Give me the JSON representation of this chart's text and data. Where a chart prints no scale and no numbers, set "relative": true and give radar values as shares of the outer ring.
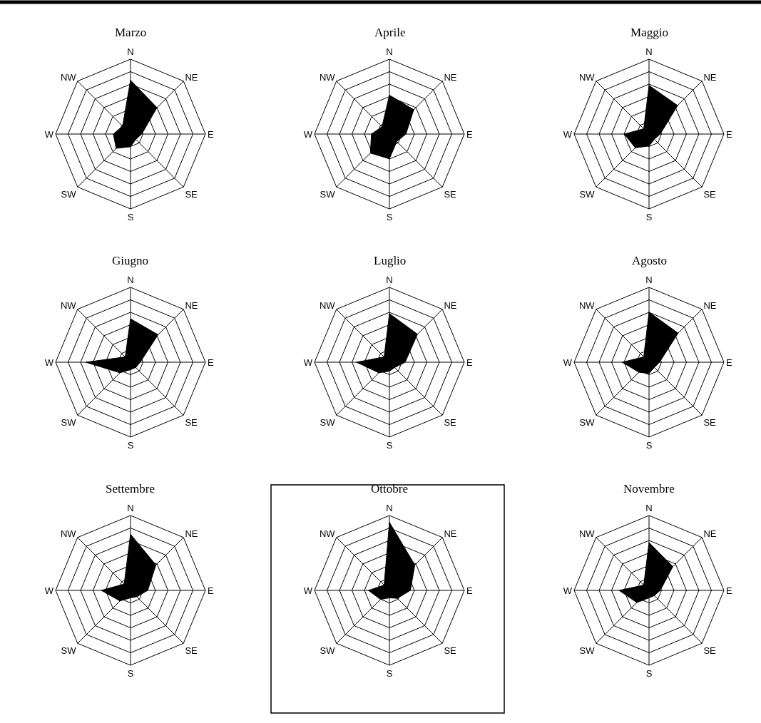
{
  "chart_data": [
    {
      "type": "radar",
      "title": "Marzo",
      "relative": true,
      "categories": [
        "N",
        "NE",
        "E",
        "SE",
        "S",
        "SW",
        "W",
        "NW"
      ],
      "series": [
        {
          "color": "#000000",
          "values": [
            0.72,
            0.5,
            0.15,
            0.1,
            0.17,
            0.27,
            0.23,
            0.15
          ]
        }
      ]
    },
    {
      "type": "radar",
      "title": "Aprile",
      "relative": true,
      "categories": [
        "N",
        "NE",
        "E",
        "SE",
        "S",
        "SW",
        "W",
        "NW"
      ],
      "series": [
        {
          "color": "#000000",
          "values": [
            0.52,
            0.46,
            0.22,
            0.14,
            0.33,
            0.36,
            0.24,
            0.14
          ]
        }
      ]
    },
    {
      "type": "radar",
      "title": "Maggio",
      "relative": true,
      "categories": [
        "N",
        "NE",
        "E",
        "SE",
        "S",
        "SW",
        "W",
        "NW"
      ],
      "series": [
        {
          "color": "#000000",
          "values": [
            0.65,
            0.54,
            0.15,
            0.1,
            0.16,
            0.26,
            0.33,
            0.1
          ]
        }
      ]
    },
    {
      "type": "radar",
      "title": "Giugno",
      "relative": true,
      "categories": [
        "N",
        "NE",
        "E",
        "SE",
        "S",
        "SW",
        "W",
        "NW"
      ],
      "series": [
        {
          "color": "#000000",
          "values": [
            0.58,
            0.52,
            0.13,
            0.1,
            0.1,
            0.2,
            0.6,
            0.1
          ]
        }
      ]
    },
    {
      "type": "radar",
      "title": "Luglio",
      "relative": true,
      "categories": [
        "N",
        "NE",
        "E",
        "SE",
        "S",
        "SW",
        "W",
        "NW"
      ],
      "series": [
        {
          "color": "#000000",
          "values": [
            0.65,
            0.53,
            0.21,
            0.1,
            0.12,
            0.2,
            0.44,
            0.1
          ]
        }
      ]
    },
    {
      "type": "radar",
      "title": "Agosto",
      "relative": true,
      "categories": [
        "N",
        "NE",
        "E",
        "SE",
        "S",
        "SW",
        "W",
        "NW"
      ],
      "series": [
        {
          "color": "#000000",
          "values": [
            0.67,
            0.55,
            0.14,
            0.1,
            0.15,
            0.19,
            0.36,
            0.1
          ]
        }
      ]
    },
    {
      "type": "radar",
      "title": "Settembre",
      "relative": true,
      "categories": [
        "N",
        "NE",
        "E",
        "SE",
        "S",
        "SW",
        "W",
        "NW"
      ],
      "series": [
        {
          "color": "#000000",
          "values": [
            0.75,
            0.48,
            0.23,
            0.12,
            0.1,
            0.2,
            0.39,
            0.12
          ]
        }
      ]
    },
    {
      "type": "radar",
      "title": "Ottobre",
      "relative": true,
      "categories": [
        "N",
        "NE",
        "E",
        "SE",
        "S",
        "SW",
        "W",
        "NW"
      ],
      "series": [
        {
          "color": "#000000",
          "values": [
            0.91,
            0.48,
            0.28,
            0.15,
            0.1,
            0.17,
            0.28,
            0.1
          ]
        }
      ]
    },
    {
      "type": "radar",
      "title": "Novembre",
      "relative": true,
      "categories": [
        "N",
        "NE",
        "E",
        "SE",
        "S",
        "SW",
        "W",
        "NW"
      ],
      "series": [
        {
          "color": "#000000",
          "values": [
            0.64,
            0.45,
            0.15,
            0.1,
            0.1,
            0.23,
            0.4,
            0.1
          ]
        }
      ]
    }
  ]
}
